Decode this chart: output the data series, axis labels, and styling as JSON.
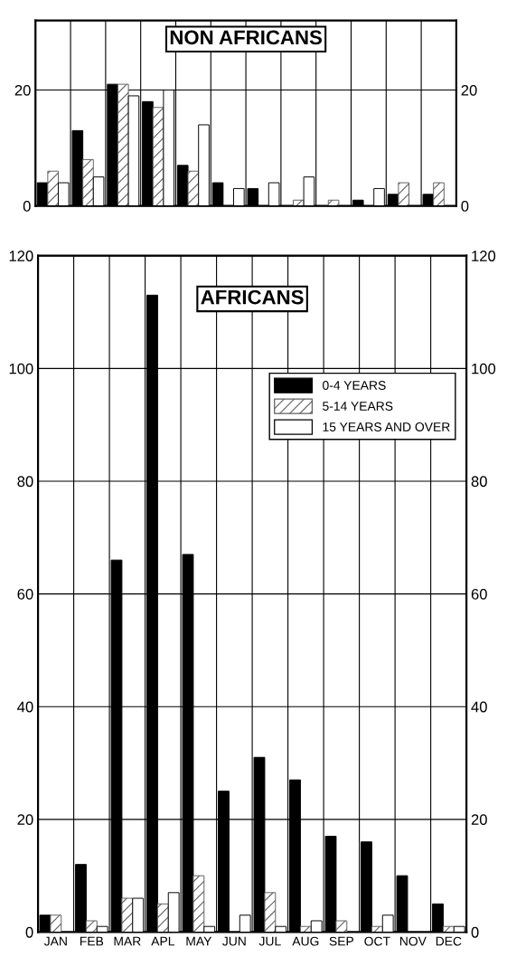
{
  "chart_data": [
    {
      "type": "bar",
      "title": "NON AFRICANS",
      "categories": [
        null,
        null,
        null,
        null,
        null,
        null,
        null,
        null,
        null,
        null,
        null,
        null
      ],
      "series": [
        {
          "color": "#000000",
          "values": [
            4,
            13,
            21,
            18,
            7,
            4,
            3,
            0,
            0,
            1,
            2,
            2
          ]
        },
        {
          "color": "#606060",
          "values": [
            6,
            8,
            21,
            17,
            6,
            0,
            0,
            1,
            1,
            0,
            4,
            4
          ]
        },
        {
          "color": "#ffffff",
          "values": [
            4,
            5,
            19,
            20,
            14,
            3,
            4,
            5,
            0,
            3,
            0,
            0
          ]
        }
      ],
      "ylim": [
        0,
        32
      ],
      "yticks": [
        0,
        20
      ],
      "y2lim": [
        0,
        32
      ],
      "y2ticks": [
        0,
        20
      ],
      "grid": true,
      "tick_labels": "y",
      "legend": false
    },
    {
      "type": "bar",
      "title": "AFRICANS",
      "categories": [
        "JAN",
        "FEB",
        "MAR",
        "APL",
        "MAY",
        "JUN",
        "JUL",
        "AUG",
        "SEP",
        "OCT",
        "NOV",
        "DEC"
      ],
      "series": [
        {
          "name": "0-4 YEARS",
          "color": "#000000",
          "values": [
            3,
            12,
            66,
            113,
            67,
            25,
            31,
            27,
            17,
            16,
            10,
            5
          ]
        },
        {
          "name": "5-14 YEARS",
          "color": "#606060",
          "values": [
            3,
            2,
            6,
            5,
            10,
            0,
            7,
            1,
            2,
            1,
            0,
            1
          ]
        },
        {
          "name": "15 YEARS AND OVER",
          "color": "#ffffff",
          "values": [
            0,
            1,
            6,
            7,
            1,
            3,
            1,
            2,
            0,
            3,
            0,
            1
          ]
        }
      ],
      "ylim": [
        0,
        120
      ],
      "yticks": [
        0,
        20,
        40,
        60,
        80,
        100,
        120
      ],
      "y2lim": [
        0,
        120
      ],
      "y2ticks": [
        0,
        20,
        40,
        60,
        80,
        100,
        120
      ],
      "grid": true,
      "legend": "top right"
    }
  ]
}
